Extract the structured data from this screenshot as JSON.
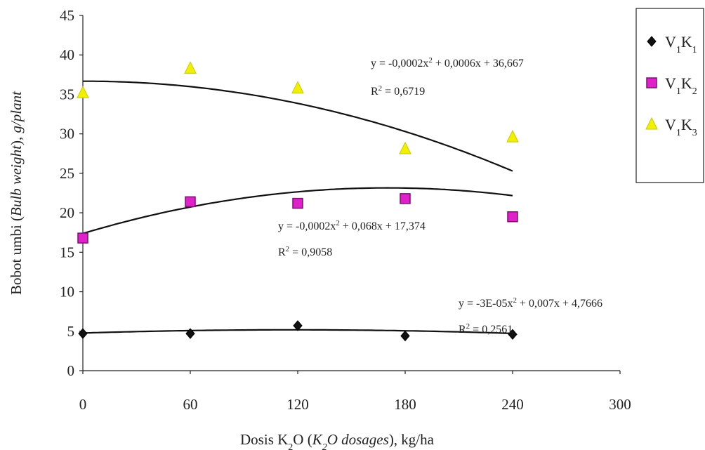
{
  "chart_data": {
    "type": "scatter",
    "xlim": [
      0,
      300
    ],
    "ylim": [
      0,
      45
    ],
    "x_ticks": [
      "0",
      "60",
      "120",
      "180",
      "240",
      "300"
    ],
    "y_ticks": [
      "0",
      "5",
      "10",
      "15",
      "20",
      "25",
      "30",
      "35",
      "40",
      "45"
    ],
    "xlabel": {
      "base": "Dosis K",
      "sub": "2",
      "rest": "O (",
      "italic": "K",
      "italic_sub": "2",
      "italic_rest": "O dosages",
      "end": "), kg/ha"
    },
    "ylabel": {
      "base": "Bobot umbi (",
      "italic": "Bulb weight",
      "mid": "), ",
      "italic2": "g/plant"
    },
    "grid": false,
    "legend_position": "right",
    "series": [
      {
        "name": "V1K1",
        "legend": {
          "v": "V",
          "v_sub": "1",
          "k": "K",
          "k_sub": "1"
        },
        "marker": "diamond",
        "color": "#111111",
        "x": [
          0,
          60,
          120,
          180,
          240
        ],
        "y": [
          4.7,
          4.7,
          5.7,
          4.4,
          4.6
        ],
        "trendline": {
          "type": "poly2",
          "coefficients": [
            -3e-05,
            0.007,
            4.7666
          ]
        },
        "equation": {
          "pre": "y = -3E-05x",
          "sup": "2",
          "post": " + 0,007x + 4,7666"
        },
        "r2": {
          "pre": "R",
          "sup": "2",
          "post": " = 0,2561"
        }
      },
      {
        "name": "V1K2",
        "legend": {
          "v": "V",
          "v_sub": "1",
          "k": "K",
          "k_sub": "2"
        },
        "marker": "square",
        "color": "#e020c8",
        "x": [
          0,
          60,
          120,
          180,
          240
        ],
        "y": [
          16.8,
          21.4,
          21.2,
          21.8,
          19.5
        ],
        "trendline": {
          "type": "poly2",
          "coefficients": [
            -0.0002,
            0.068,
            17.374
          ]
        },
        "equation": {
          "pre": "y = -0,0002x",
          "sup": "2",
          "post": " + 0,068x + 17,374"
        },
        "r2": {
          "pre": "R",
          "sup": "2",
          "post": " = 0,9058"
        }
      },
      {
        "name": "V1K3",
        "legend": {
          "v": "V",
          "v_sub": "1",
          "k": "K",
          "k_sub": "3"
        },
        "marker": "triangle",
        "color": "#f0f000",
        "x": [
          0,
          60,
          120,
          180,
          240
        ],
        "y": [
          35.2,
          38.3,
          35.8,
          28.1,
          29.6
        ],
        "trendline": {
          "type": "poly2",
          "coefficients": [
            -0.0002,
            0.0006,
            36.667
          ]
        },
        "equation": {
          "pre": "y = -0,0002x",
          "sup": "2",
          "post": " + 0,0006x + 36,667"
        },
        "r2": {
          "pre": "R",
          "sup": "2",
          "post": " = 0,6719"
        }
      }
    ]
  }
}
